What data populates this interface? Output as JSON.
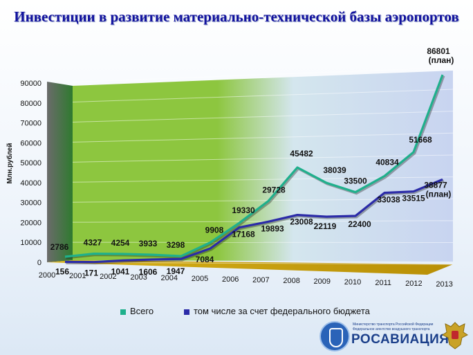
{
  "title": "Инвестиции в развитие материально-технической базы аэропортов",
  "colors": {
    "total": "#1fb08c",
    "federal": "#2b2ba8",
    "title": "#12129e",
    "floor": "#c8a30c"
  },
  "legend": {
    "total": "Всего",
    "federal": "том числе за счет федерального бюджета"
  },
  "logo": {
    "line1": "Министерство транспорта Российской Федерации",
    "line2": "Федеральное агентство воздушного транспорта",
    "brand": "РОСАВИАЦИЯ"
  },
  "chart_data": {
    "type": "line",
    "title": "Инвестиции в развитие материально-технической базы аэропортов",
    "ylabel": "Млн.рублей",
    "ylim": [
      0,
      90000
    ],
    "yticks": [
      0,
      10000,
      20000,
      30000,
      40000,
      50000,
      60000,
      70000,
      80000,
      90000
    ],
    "categories": [
      "2000",
      "2001",
      "2002",
      "2003",
      "2004",
      "2005",
      "2006",
      "2007",
      "2008",
      "2009",
      "2010",
      "2011",
      "2012",
      "2013"
    ],
    "series": [
      {
        "name": "Всего",
        "values": [
          2786,
          4327,
          4254,
          3933,
          3298,
          9908,
          19330,
          29728,
          45482,
          38039,
          33500,
          40834,
          51668,
          86801
        ],
        "labels": [
          "2786",
          "4327",
          "4254",
          "3933",
          "3298",
          "9908",
          "19330",
          "29728",
          "45482",
          "38039",
          "33500",
          "40834",
          "51668",
          "86801 (план)"
        ]
      },
      {
        "name": "том числе за счет федерального бюджета",
        "values": [
          156,
          171,
          1041,
          1606,
          1947,
          7084,
          17168,
          19893,
          23008,
          22119,
          22400,
          33038,
          33515,
          38877
        ],
        "labels": [
          "156",
          "171",
          "1041",
          "1606",
          "1947",
          "7084",
          "17168",
          "19893",
          "23008",
          "22119",
          "22400",
          "33038",
          "33515",
          "38877 (план)"
        ]
      }
    ]
  }
}
